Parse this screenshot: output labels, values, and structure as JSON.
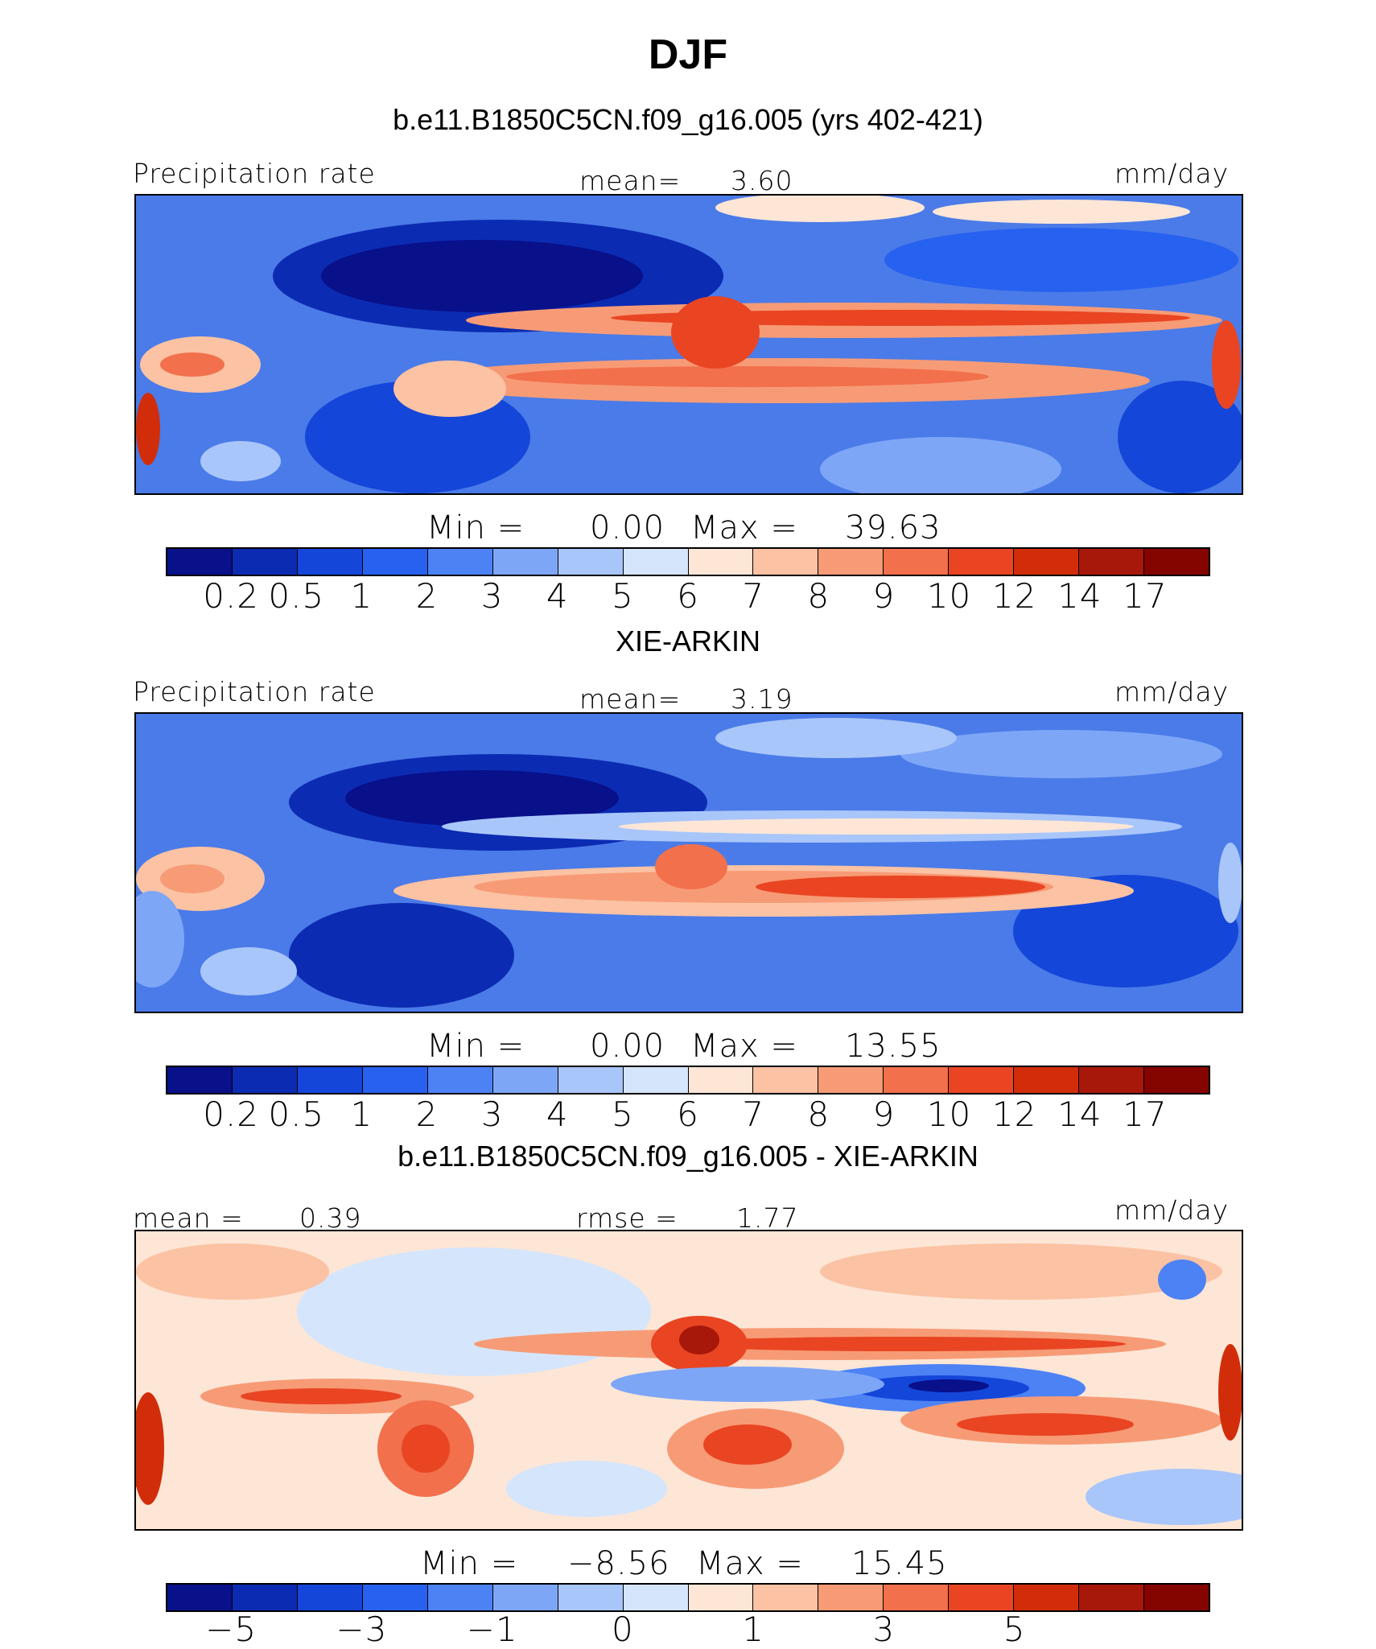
{
  "figure": {
    "title": "DJF",
    "colors": [
      "#08108a",
      "#0c2bb3",
      "#1446d9",
      "#2761f0",
      "#4d82f5",
      "#7ea6f7",
      "#a9c6fa",
      "#d5e5fb",
      "#fde6d6",
      "#fbc2a4",
      "#f79b76",
      "#f2704c",
      "#e94523",
      "#d22d0a",
      "#a8180a",
      "#840400"
    ],
    "panels": [
      {
        "id": "model",
        "title": "b.e11.B1850C5CN.f09_g16.005 (yrs 402-421)",
        "left_label": "Precipitation rate",
        "center_label": "mean=",
        "center_value": "3.60",
        "right_label": "mm/day",
        "min_label": "Min =",
        "min_value": "0.00",
        "max_label": "Max =",
        "max_value": "39.63",
        "tick_labels": [
          "0.2",
          "0.5",
          "1",
          "2",
          "3",
          "4",
          "5",
          "6",
          "7",
          "8",
          "9",
          "10",
          "12",
          "14",
          "17"
        ]
      },
      {
        "id": "obs",
        "title": "XIE-ARKIN",
        "left_label": "Precipitation rate",
        "center_label": "mean=",
        "center_value": "3.19",
        "right_label": "mm/day",
        "min_label": "Min =",
        "min_value": "0.00",
        "max_label": "Max =",
        "max_value": "13.55",
        "tick_labels": [
          "0.2",
          "0.5",
          "1",
          "2",
          "3",
          "4",
          "5",
          "6",
          "7",
          "8",
          "9",
          "10",
          "12",
          "14",
          "17"
        ]
      },
      {
        "id": "diff",
        "title": "b.e11.B1850C5CN.f09_g16.005 - XIE-ARKIN",
        "left_label": "mean =",
        "left_value": "0.39",
        "center_label": "rmse =",
        "center_value": "1.77",
        "right_label": "mm/day",
        "min_label": "Min =",
        "min_value": "−8.56",
        "max_label": "Max =",
        "max_value": "15.45",
        "tick_labels": [
          "−5",
          "",
          "−3",
          "",
          "−1",
          "",
          "0",
          "",
          "1",
          "",
          "3",
          "",
          "5",
          ""
        ]
      }
    ]
  },
  "chart_data": [
    {
      "type": "heatmap",
      "title": "b.e11.B1850C5CN.f09_g16.005 (yrs 402-421)",
      "variable": "Precipitation rate",
      "units": "mm/day",
      "mean": 3.6,
      "min": 0.0,
      "max": 39.63,
      "contour_levels": [
        0.2,
        0.5,
        1,
        2,
        3,
        4,
        5,
        6,
        7,
        8,
        9,
        10,
        12,
        14,
        17
      ]
    },
    {
      "type": "heatmap",
      "title": "XIE-ARKIN",
      "variable": "Precipitation rate",
      "units": "mm/day",
      "mean": 3.19,
      "min": 0.0,
      "max": 13.55,
      "contour_levels": [
        0.2,
        0.5,
        1,
        2,
        3,
        4,
        5,
        6,
        7,
        8,
        9,
        10,
        12,
        14,
        17
      ]
    },
    {
      "type": "heatmap",
      "title": "b.e11.B1850C5CN.f09_g16.005 - XIE-ARKIN",
      "units": "mm/day",
      "mean": 0.39,
      "rmse": 1.77,
      "min": -8.56,
      "max": 15.45,
      "contour_levels": [
        -5,
        -3,
        -1,
        0,
        1,
        3,
        5
      ]
    }
  ]
}
